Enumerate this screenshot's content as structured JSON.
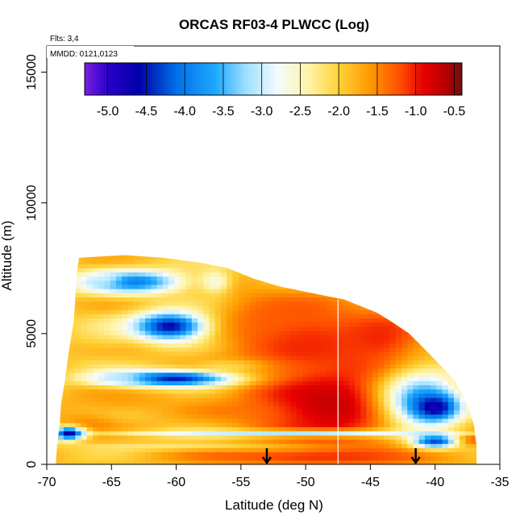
{
  "chart_data": {
    "type": "heatmap",
    "title": "ORCAS RF03-4 PLWCC (Log)",
    "xlabel": "Latitude (deg N)",
    "ylabel": "Altitude (m)",
    "xlim": [
      -70,
      -35
    ],
    "ylim": [
      0,
      16000
    ],
    "x_ticks": [
      -70,
      -65,
      -60,
      -55,
      -50,
      -45,
      -40,
      -35
    ],
    "y_ticks": [
      0,
      5000,
      10000,
      15000
    ],
    "annotations": [
      "Flts: 3,4",
      "MMDD: 0121,0123"
    ],
    "colorbar": {
      "range": [
        -5.3,
        -0.4
      ],
      "ticks": [
        -5.0,
        -4.5,
        -4.0,
        -3.5,
        -3.0,
        -2.5,
        -2.0,
        -1.5,
        -1.0,
        -0.5
      ],
      "tick_labels": [
        "-5.0",
        "-4.5",
        "-4.0",
        "-3.5",
        "-3.0",
        "-2.5",
        "-2.0",
        "-1.5",
        "-1.0",
        "-0.5"
      ],
      "stops": [
        {
          "v": -5.3,
          "color": "#7a1fe0"
        },
        {
          "v": -5.0,
          "color": "#2a00c8"
        },
        {
          "v": -4.6,
          "color": "#0000a8"
        },
        {
          "v": -4.1,
          "color": "#0070e8"
        },
        {
          "v": -3.6,
          "color": "#1ea8ff"
        },
        {
          "v": -3.2,
          "color": "#9fe0ff"
        },
        {
          "v": -2.8,
          "color": "#f4fbff"
        },
        {
          "v": -2.4,
          "color": "#fff4a8"
        },
        {
          "v": -2.0,
          "color": "#ffd23a"
        },
        {
          "v": -1.6,
          "color": "#ff9a00"
        },
        {
          "v": -1.2,
          "color": "#ff4e00"
        },
        {
          "v": -0.9,
          "color": "#e80000"
        },
        {
          "v": -0.6,
          "color": "#b40000"
        },
        {
          "v": -0.4,
          "color": "#6e1010"
        }
      ]
    },
    "boundary": [
      [
        -69.3,
        0
      ],
      [
        -69.2,
        700
      ],
      [
        -69.0,
        1500
      ],
      [
        -68.9,
        2300
      ],
      [
        -68.6,
        3200
      ],
      [
        -68.3,
        4300
      ],
      [
        -67.9,
        5500
      ],
      [
        -67.8,
        6300
      ],
      [
        -67.7,
        7200
      ],
      [
        -67.5,
        7900
      ],
      [
        -64.0,
        8000
      ],
      [
        -61.0,
        7900
      ],
      [
        -58.0,
        7700
      ],
      [
        -56.0,
        7500
      ],
      [
        -54.0,
        7100
      ],
      [
        -52.0,
        6800
      ],
      [
        -49.0,
        6500
      ],
      [
        -47.0,
        6300
      ],
      [
        -45.5,
        6000
      ],
      [
        -44.5,
        5800
      ],
      [
        -43.5,
        5500
      ],
      [
        -42.0,
        5000
      ],
      [
        -41.0,
        4500
      ],
      [
        -40.0,
        4000
      ],
      [
        -38.5,
        3200
      ],
      [
        -37.5,
        2300
      ],
      [
        -37.0,
        1500
      ],
      [
        -36.8,
        700
      ],
      [
        -36.8,
        0
      ]
    ],
    "background_value": -1.9,
    "features": [
      {
        "lon": -47.5,
        "alt": 2300,
        "rx": 6.5,
        "ry": 1500,
        "value": -0.55,
        "w": 0.9
      },
      {
        "lon": -50.0,
        "alt": 4800,
        "rx": 5.5,
        "ry": 1500,
        "value": -1.0,
        "w": 0.9
      },
      {
        "lon": -44.0,
        "alt": 4700,
        "rx": 3.0,
        "ry": 1100,
        "value": -0.9,
        "w": 0.8
      },
      {
        "lon": -53.0,
        "alt": 5700,
        "rx": 3.5,
        "ry": 900,
        "value": -1.2,
        "w": 0.6
      },
      {
        "lon": -49.0,
        "alt": 300,
        "rx": 10.0,
        "ry": 300,
        "value": -1.0,
        "w": 0.9
      },
      {
        "lon": -37.5,
        "alt": 1000,
        "rx": 1.5,
        "ry": 250,
        "value": -0.9,
        "w": 0.9
      },
      {
        "lon": -67.0,
        "alt": 1500,
        "rx": 2.5,
        "ry": 500,
        "value": -1.3,
        "w": 0.7
      },
      {
        "lon": -64.5,
        "alt": 2400,
        "rx": 4.5,
        "ry": 500,
        "value": -1.5,
        "w": 0.6
      },
      {
        "lon": -65.5,
        "alt": 5000,
        "rx": 2.5,
        "ry": 700,
        "value": -2.4,
        "w": 0.5
      },
      {
        "lon": -63.5,
        "alt": 7000,
        "rx": 4.0,
        "ry": 450,
        "value": -4.0,
        "w": 1.0
      },
      {
        "lon": -65.5,
        "alt": 7100,
        "rx": 1.5,
        "ry": 300,
        "value": -2.7,
        "w": 0.6
      },
      {
        "lon": -57.0,
        "alt": 7000,
        "rx": 1.2,
        "ry": 450,
        "value": -2.9,
        "w": 0.8
      },
      {
        "lon": -60.5,
        "alt": 5300,
        "rx": 2.8,
        "ry": 550,
        "value": -4.6,
        "w": 1.0
      },
      {
        "lon": -60.5,
        "alt": 3300,
        "rx": 5.0,
        "ry": 300,
        "value": -4.6,
        "w": 1.0
      },
      {
        "lon": -64.5,
        "alt": 3300,
        "rx": 2.5,
        "ry": 250,
        "value": -3.0,
        "w": 0.8
      },
      {
        "lon": -41.0,
        "alt": 2500,
        "rx": 3.2,
        "ry": 1200,
        "value": -3.6,
        "w": 1.0
      },
      {
        "lon": -40.0,
        "alt": 2200,
        "rx": 1.7,
        "ry": 500,
        "value": -4.8,
        "w": 1.0
      },
      {
        "lon": -51.0,
        "alt": 1200,
        "rx": 14.0,
        "ry": 130,
        "value": -3.2,
        "w": 0.95
      },
      {
        "lon": -68.3,
        "alt": 1200,
        "rx": 1.2,
        "ry": 250,
        "value": -4.7,
        "w": 1.0
      },
      {
        "lon": -40.0,
        "alt": 900,
        "rx": 1.7,
        "ry": 250,
        "value": -4.3,
        "w": 1.0
      },
      {
        "lon": -60.0,
        "alt": 700,
        "rx": 8.0,
        "ry": 150,
        "value": -2.5,
        "w": 0.6
      },
      {
        "lon": -56.0,
        "alt": 3800,
        "rx": 3.0,
        "ry": 250,
        "value": -2.6,
        "w": 0.5
      }
    ],
    "vertical_line_lat": -47.5,
    "arrows_lat": [
      -53.0,
      -41.5
    ]
  }
}
